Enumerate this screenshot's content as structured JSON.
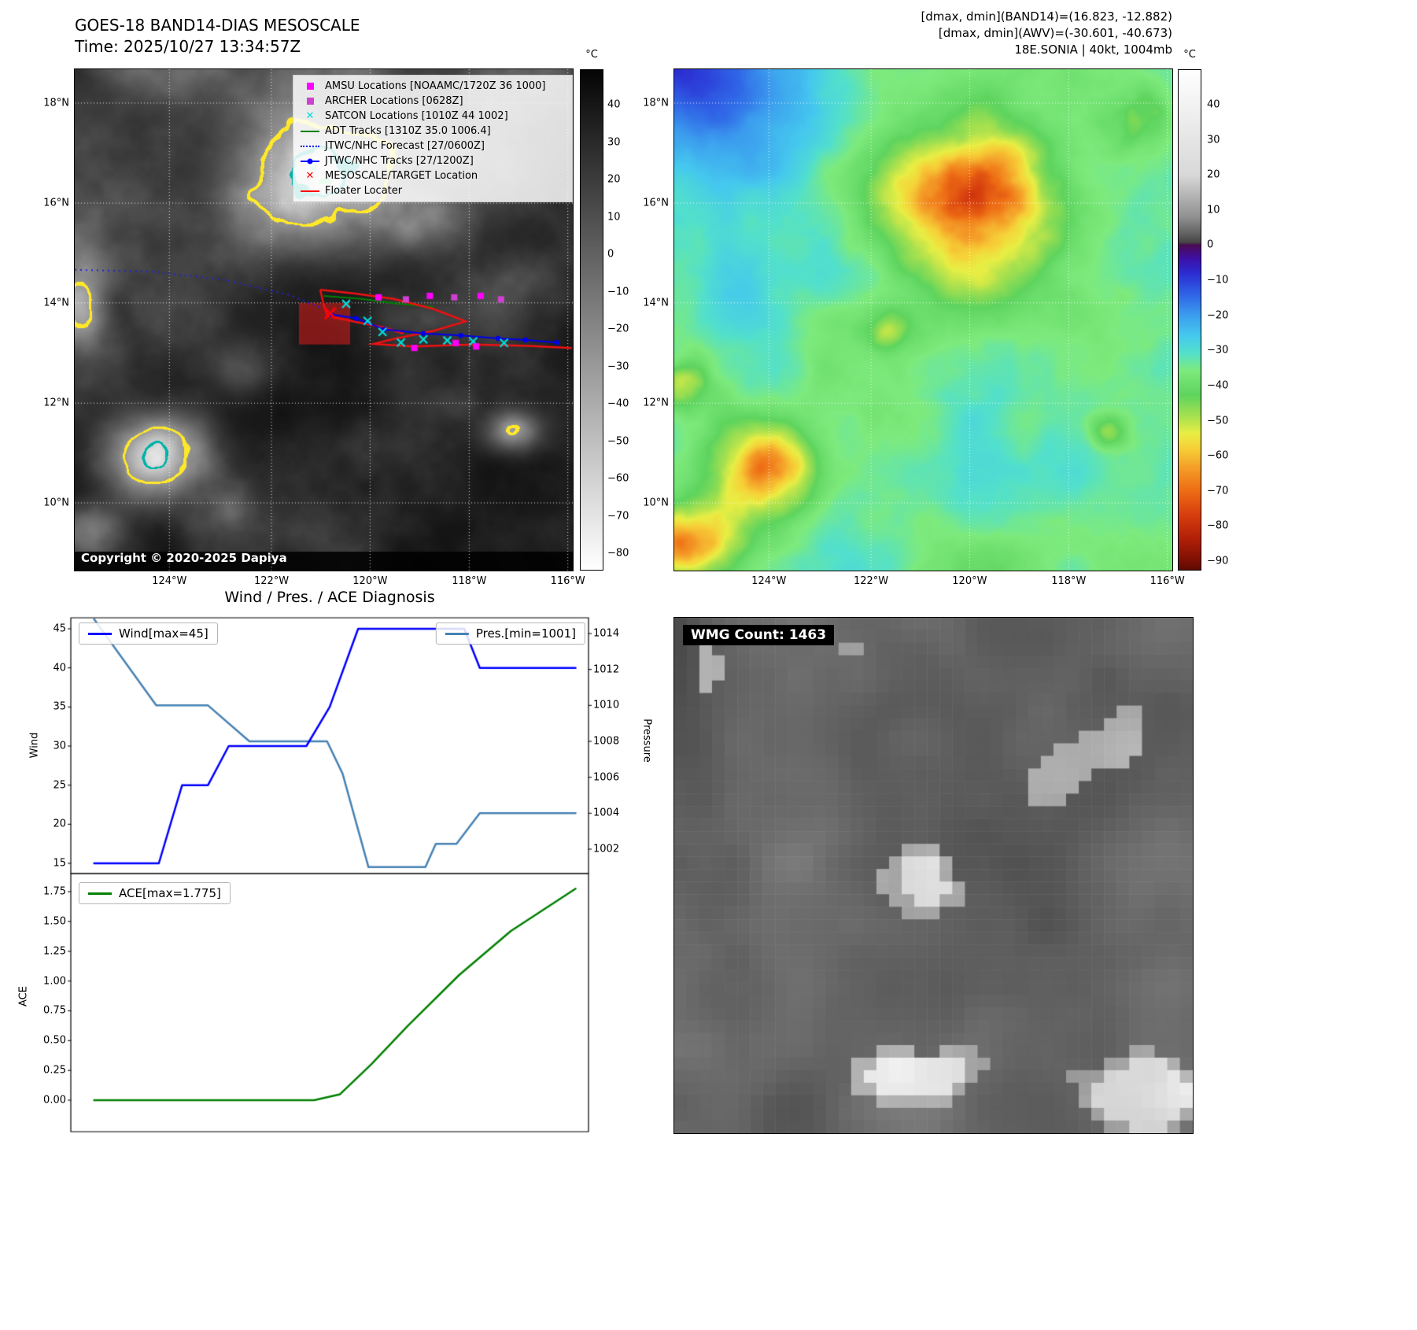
{
  "ir_panel": {
    "title": "GOES-18 BAND14-DIAS MESOSCALE",
    "subtitle": "Time: 2025/10/27 13:34:57Z",
    "copyright": "Copyright © 2020-2025 Dapiya",
    "colorbar_unit": "°C",
    "colorbar_ticks": [
      "40",
      "30",
      "20",
      "10",
      "0",
      "−10",
      "−20",
      "−30",
      "−40",
      "−50",
      "−60",
      "−70",
      "−80"
    ],
    "colorbar_stops": [
      [
        50,
        "#050505"
      ],
      [
        -85,
        "#ffffff"
      ]
    ],
    "lat_ticks": [
      "18°N",
      "16°N",
      "14°N",
      "12°N",
      "10°N"
    ],
    "lon_ticks": [
      "124°W",
      "122°W",
      "120°W",
      "118°W",
      "116°W"
    ],
    "legend": [
      {
        "marker": "square",
        "color": "#ff00ff",
        "label": "AMSU Locations [NOAAMC/1720Z 36 1000]"
      },
      {
        "marker": "square",
        "color": "#d040d0",
        "label": "ARCHER Locations [0628Z]"
      },
      {
        "marker": "x",
        "color": "#00dcdc",
        "label": "SATCON Locations [1010Z 44 1002]"
      },
      {
        "marker": "line",
        "color": "#008000",
        "label": "ADT Tracks [1310Z 35.0 1006.4]"
      },
      {
        "marker": "dotted",
        "color": "#0000ff",
        "label": "JTWC/NHC Forecast [27/0600Z]"
      },
      {
        "marker": "line-dot",
        "color": "#0000ff",
        "label": "JTWC/NHC Tracks [27/1200Z]"
      },
      {
        "marker": "x",
        "color": "#ff0000",
        "label": "MESOSCALE/TARGET Location"
      },
      {
        "marker": "line",
        "color": "#ff0000",
        "label": "Floater Locater"
      }
    ]
  },
  "awv_panel": {
    "header_lines": [
      "[dmax, dmin](BAND14)=(16.823, -12.882)",
      "[dmax, dmin](AWV)=(-30.601, -40.673)",
      "18E.SONIA | 40kt, 1004mb"
    ],
    "colorbar_unit": "°C",
    "colorbar_ticks": [
      "40",
      "30",
      "20",
      "10",
      "0",
      "−10",
      "−20",
      "−30",
      "−40",
      "−50",
      "−60",
      "−70",
      "−80",
      "−90"
    ],
    "colorbar_stops": [
      [
        50,
        "#ffffff"
      ],
      [
        20,
        "#d8d8d8"
      ],
      [
        8,
        "#909090"
      ],
      [
        3,
        "#5f5f5f"
      ],
      [
        0.6,
        "#454545"
      ],
      [
        0,
        "#4b0b52"
      ],
      [
        -4,
        "#3c10a8"
      ],
      [
        -8,
        "#2b2bd0"
      ],
      [
        -14,
        "#2f62e6"
      ],
      [
        -20,
        "#3b9cee"
      ],
      [
        -26,
        "#45c8ee"
      ],
      [
        -31,
        "#52e0cc"
      ],
      [
        -36,
        "#7dea7d"
      ],
      [
        -43,
        "#5ed45e"
      ],
      [
        -49,
        "#a5e04f"
      ],
      [
        -54,
        "#e8ee44"
      ],
      [
        -58,
        "#f6d238"
      ],
      [
        -64,
        "#f49c28"
      ],
      [
        -70,
        "#ee6f15"
      ],
      [
        -77,
        "#d8400e"
      ],
      [
        -84,
        "#b22008"
      ],
      [
        -90,
        "#801004"
      ],
      [
        -93,
        "#5f0a02"
      ]
    ],
    "lat_ticks": [
      "18°N",
      "16°N",
      "14°N",
      "12°N",
      "10°N"
    ],
    "lon_ticks": [
      "124°W",
      "122°W",
      "120°W",
      "118°W",
      "116°W"
    ]
  },
  "diagnosis": {
    "title": "Wind / Pres. / ACE Diagnosis",
    "wind_ylabel": "Wind",
    "pressure_ylabel": "Pressure",
    "ace_ylabel": "ACE",
    "wind_legend": "Wind[max=45]",
    "pressure_legend": "Pres.[min=1001]",
    "ace_legend": "ACE[max=1.775]"
  },
  "wmg_panel": {
    "label": "WMG Count: 1463"
  },
  "chart_data": [
    {
      "type": "line",
      "title": "Wind / Pres. / ACE Diagnosis — upper panel (wind & pressure)",
      "x_note": "x axis has no visible tick labels; x given as 0–1 fraction of axis width",
      "series": [
        {
          "name": "Wind[max=45]",
          "color": "#0000ff",
          "axis": "left",
          "x": [
            0.045,
            0.17,
            0.215,
            0.265,
            0.305,
            0.455,
            0.5,
            0.555,
            0.76,
            0.79,
            0.975
          ],
          "y": [
            15,
            15,
            25,
            25,
            30,
            30,
            35,
            45,
            45,
            40,
            40
          ]
        },
        {
          "name": "Pres.[min=1001]",
          "color": "#4682b4",
          "axis": "right",
          "x": [
            0.045,
            0.165,
            0.265,
            0.345,
            0.495,
            0.525,
            0.575,
            0.685,
            0.705,
            0.745,
            0.79,
            0.975
          ],
          "y": [
            1014.8,
            1010,
            1010,
            1008,
            1008,
            1006.2,
            1001,
            1001,
            1002.3,
            1002.3,
            1004,
            1004
          ]
        }
      ],
      "left_ticks": [
        45,
        40,
        35,
        30,
        25,
        20,
        15
      ],
      "right_ticks": [
        1014,
        1012,
        1010,
        1008,
        1006,
        1004,
        1002
      ],
      "left_range": [
        15,
        45
      ],
      "right_range": [
        1002,
        1014
      ],
      "legend_position": "upper-left and upper-right"
    },
    {
      "type": "line",
      "title": "Wind / Pres. / ACE Diagnosis — lower panel (ACE)",
      "series": [
        {
          "name": "ACE[max=1.775]",
          "color": "#008000",
          "axis": "left",
          "x": [
            0.045,
            0.47,
            0.52,
            0.58,
            0.65,
            0.75,
            0.85,
            0.975
          ],
          "y": [
            0,
            0,
            0.05,
            0.3,
            0.62,
            1.05,
            1.42,
            1.775
          ]
        }
      ],
      "left_ticks": [
        1.75,
        1.5,
        1.25,
        1.0,
        0.75,
        0.5,
        0.25,
        0.0
      ],
      "left_range": [
        0,
        1.775
      ],
      "legend_position": "upper-left"
    }
  ]
}
